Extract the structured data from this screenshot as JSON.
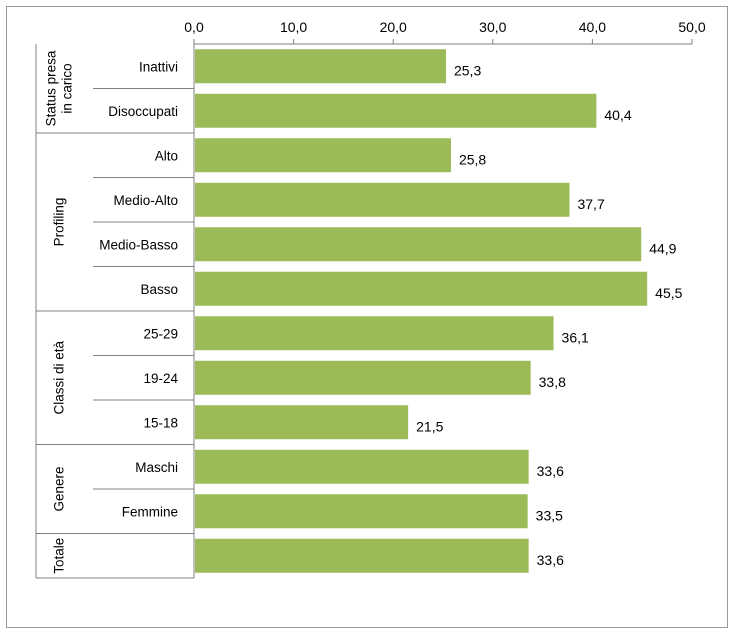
{
  "chart_data": {
    "type": "bar",
    "orientation": "horizontal",
    "xlim": [
      0,
      50
    ],
    "x_ticks": [
      "0,0",
      "10,0",
      "20,0",
      "30,0",
      "40,0",
      "50,0"
    ],
    "x_axis_position": "top",
    "bar_color": "#9bbb59",
    "grid": false,
    "groups": [
      {
        "label": "Status presa in carico",
        "label_lines": [
          "Status presa",
          "in carico"
        ],
        "categories": [
          "Inattivi",
          "Disoccupati"
        ],
        "values": [
          25.3,
          40.4
        ],
        "value_labels": [
          "25,3",
          "40,4"
        ]
      },
      {
        "label": "Profiling",
        "label_lines": [
          "Profiling"
        ],
        "categories": [
          "Alto",
          "Medio-Alto",
          "Medio-Basso",
          "Basso"
        ],
        "values": [
          25.8,
          37.7,
          44.9,
          45.5
        ],
        "value_labels": [
          "25,8",
          "37,7",
          "44,9",
          "45,5"
        ]
      },
      {
        "label": "Classi di età",
        "label_lines": [
          "Classi di età"
        ],
        "categories": [
          "25-29",
          "19-24",
          "15-18"
        ],
        "values": [
          36.1,
          33.8,
          21.5
        ],
        "value_labels": [
          "36,1",
          "33,8",
          "21,5"
        ]
      },
      {
        "label": "Genere",
        "label_lines": [
          "Genere"
        ],
        "categories": [
          "Maschi",
          "Femmine"
        ],
        "values": [
          33.6,
          33.5
        ],
        "value_labels": [
          "33,6",
          "33,5"
        ]
      },
      {
        "label": "Totale",
        "label_lines": [
          "Totale"
        ],
        "categories": [
          ""
        ],
        "values": [
          33.6
        ],
        "value_labels": [
          "33,6"
        ]
      }
    ]
  }
}
